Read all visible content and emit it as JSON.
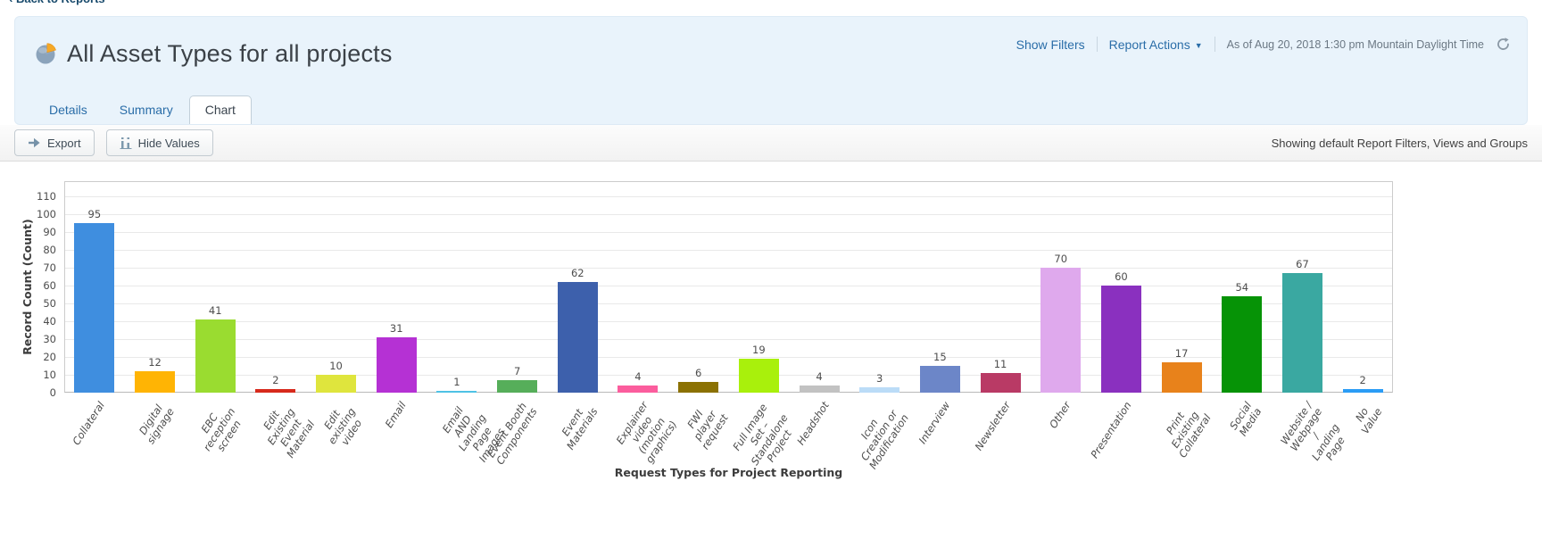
{
  "back_link": "Back to Reports",
  "header": {
    "title": "All Asset Types for all projects",
    "show_filters": "Show Filters",
    "report_actions": "Report Actions",
    "as_of": "As of Aug 20, 2018 1:30 pm Mountain Daylight Time",
    "tabs": [
      {
        "label": "Details",
        "active": false
      },
      {
        "label": "Summary",
        "active": false
      },
      {
        "label": "Chart",
        "active": true
      }
    ]
  },
  "toolbar": {
    "export_label": "Export",
    "hide_values_label": "Hide Values",
    "status_text": "Showing default Report Filters, Views and Groups"
  },
  "chart_data": {
    "type": "bar",
    "title": "",
    "xlabel": "Request Types for Project Reporting",
    "ylabel": "Record Count (Count)",
    "ylim": [
      0,
      110
    ],
    "ytick_step": 10,
    "grid": true,
    "legend": false,
    "categories": [
      "Collateral",
      "Digital signage",
      "EBC reception screen",
      "Edit Existing Event Material",
      "Edit existing video",
      "Email",
      "Email AND Landing Page\nImages",
      "Event Booth Components",
      "Event Materials",
      "Explainer video (motion\ngraphics)",
      "FWI player request",
      "Full Image Set – Standalone\nProject",
      "Headshot",
      "Icon Creation or\nModification",
      "Interview",
      "Newsletter",
      "Other",
      "Presentation",
      "Print Existing Collateral",
      "Social Media",
      "Website / Webpage /\nLanding Page",
      "No Value"
    ],
    "values": [
      95,
      12,
      41,
      2,
      10,
      31,
      1,
      7,
      62,
      4,
      6,
      19,
      4,
      3,
      15,
      11,
      70,
      60,
      17,
      54,
      67,
      2
    ],
    "colors": [
      "#3f8edf",
      "#ffb404",
      "#9adc30",
      "#d7291c",
      "#dfe53d",
      "#b531d4",
      "#4ec2e5",
      "#56ae5a",
      "#3d60ac",
      "#fb5d9d",
      "#8b7103",
      "#a9f00c",
      "#c2c2c2",
      "#bbdcf7",
      "#6c86c8",
      "#b93a65",
      "#dfa9ed",
      "#8a30bf",
      "#e8821b",
      "#069306",
      "#3aa8a1",
      "#2a9cf5"
    ]
  }
}
